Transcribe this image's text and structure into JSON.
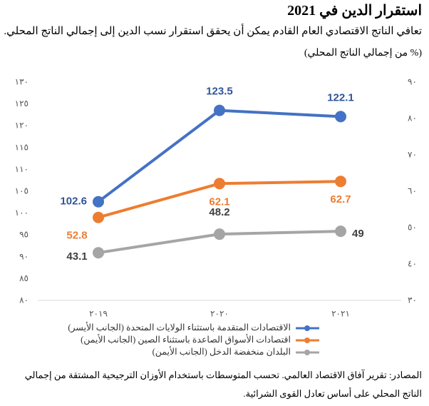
{
  "title": "استقرار الدين في 2021",
  "subtitle": "تعافي الناتج الاقتصادي العام القادم يمكن أن يحقق استقرار نسب الدين إلى إجمالي الناتج المحلي.",
  "source": "المصادر: تقرير آفاق الاقتصاد العالمي. تحسب المتوسطات باستخدام الأوزان الترجيحية المشتقة من إجمالي الناتج المحلي على أساس تعادل القوى الشرائية.",
  "chart_data": {
    "type": "line",
    "y_label": "(% من إجمالي الناتج المحلي)",
    "categories": [
      "٢٠١٩",
      "٢٠٢٠",
      "٢٠٢١"
    ],
    "series": [
      {
        "name": "الاقتصادات المتقدمة باستثناء الولايات المتحدة (الجانب الأيسر)",
        "color": "#4472c4",
        "label_color": "#2f5597",
        "values": [
          102.6,
          123.5,
          122.1
        ]
      },
      {
        "name": "اقتصادات الأسواق الصاعدة باستثناء الصين (الجانب الأيمن)",
        "color": "#ed7d31",
        "label_color": "#ed7d31",
        "axis": "y2",
        "values": [
          52.8,
          62.1,
          62.7
        ]
      },
      {
        "name": "البلدان منخفضة الدخل (الجانب الأيمن)",
        "color": "#a5a5a5",
        "label_color": "#404040",
        "axis": "y2",
        "values": [
          43.1,
          48.2,
          49.0
        ]
      }
    ],
    "ylim": [
      80,
      130
    ],
    "yticks": [
      {
        "value": 80,
        "label": "٨٠"
      },
      {
        "value": 85,
        "label": "٨٥"
      },
      {
        "value": 90,
        "label": "٩٠"
      },
      {
        "value": 95,
        "label": "٩٥"
      },
      {
        "value": 100,
        "label": "١٠٠"
      },
      {
        "value": 105,
        "label": "١٠٥"
      },
      {
        "value": 110,
        "label": "١١٠"
      },
      {
        "value": 115,
        "label": "١١٥"
      },
      {
        "value": 120,
        "label": "١٢٠"
      },
      {
        "value": 125,
        "label": "١٢٥"
      },
      {
        "value": 130,
        "label": "١٣٠"
      }
    ],
    "y2lim": [
      30,
      90
    ],
    "y2ticks": [
      {
        "value": 30,
        "label": "٣٠"
      },
      {
        "value": 40,
        "label": "٤٠"
      },
      {
        "value": 50,
        "label": "٥٠"
      },
      {
        "value": 60,
        "label": "٦٠"
      },
      {
        "value": 70,
        "label": "٧٠"
      },
      {
        "value": 80,
        "label": "٨٠"
      },
      {
        "value": 90,
        "label": "٩٠"
      }
    ],
    "legend": "bottom"
  }
}
